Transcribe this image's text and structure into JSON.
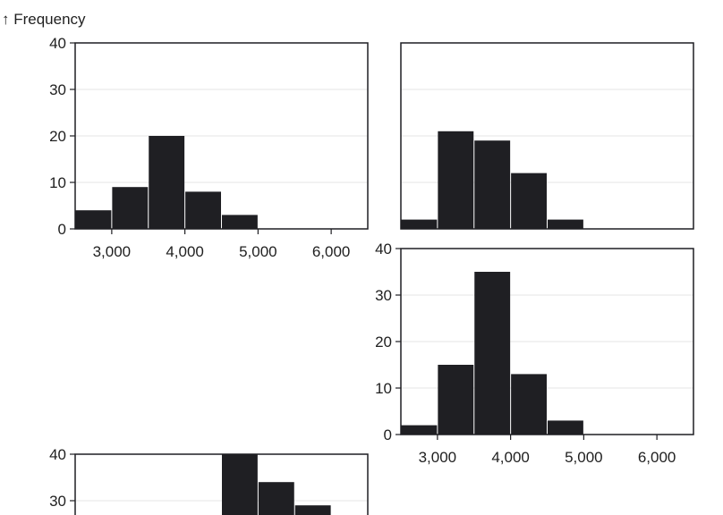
{
  "y_axis_title": "↑ Frequency",
  "colors": {
    "bar": "#1f1f23",
    "frame": "#1f1f23",
    "grid": "#e6e6e6",
    "text": "#1f1f1f"
  },
  "chart_data": [
    {
      "type": "bar",
      "xlim": [
        2500,
        6500
      ],
      "ylim": [
        0,
        40
      ],
      "bin_width": 500,
      "x_ticks": [
        3000,
        4000,
        5000,
        6000
      ],
      "x_tick_labels": [
        "3,000",
        "4,000",
        "5,000",
        "6,000"
      ],
      "y_ticks": [
        0,
        10,
        20,
        30,
        40
      ],
      "y_tick_labels": [
        "0",
        "10",
        "20",
        "30",
        "40"
      ],
      "bins": [
        {
          "x0": 2500,
          "x1": 3000,
          "y": 4
        },
        {
          "x0": 3000,
          "x1": 3500,
          "y": 9
        },
        {
          "x0": 3500,
          "x1": 4000,
          "y": 20
        },
        {
          "x0": 4000,
          "x1": 4500,
          "y": 8
        },
        {
          "x0": 4500,
          "x1": 5000,
          "y": 3
        }
      ],
      "grid": true
    },
    {
      "type": "bar",
      "xlim": [
        2500,
        6500
      ],
      "ylim": [
        0,
        40
      ],
      "bin_width": 500,
      "x_ticks": [],
      "x_tick_labels": [],
      "y_ticks": [],
      "y_tick_labels": [],
      "bins": [
        {
          "x0": 2500,
          "x1": 3000,
          "y": 2
        },
        {
          "x0": 3000,
          "x1": 3500,
          "y": 21
        },
        {
          "x0": 3500,
          "x1": 4000,
          "y": 19
        },
        {
          "x0": 4000,
          "x1": 4500,
          "y": 12
        },
        {
          "x0": 4500,
          "x1": 5000,
          "y": 2
        }
      ],
      "grid": true
    },
    {
      "type": "bar",
      "xlim": [
        2500,
        6500
      ],
      "ylim": [
        0,
        40
      ],
      "bin_width": 500,
      "x_ticks": [
        3000,
        4000,
        5000,
        6000
      ],
      "x_tick_labels": [
        "3,000",
        "4,000",
        "5,000",
        "6,000"
      ],
      "y_ticks": [
        0,
        10,
        20,
        30,
        40
      ],
      "y_tick_labels": [
        "0",
        "10",
        "20",
        "30",
        "40"
      ],
      "bins": [
        {
          "x0": 2500,
          "x1": 3000,
          "y": 2
        },
        {
          "x0": 3000,
          "x1": 3500,
          "y": 15
        },
        {
          "x0": 3500,
          "x1": 4000,
          "y": 35
        },
        {
          "x0": 4000,
          "x1": 4500,
          "y": 13
        },
        {
          "x0": 4500,
          "x1": 5000,
          "y": 3
        }
      ],
      "grid": true
    },
    {
      "type": "bar",
      "xlim": [
        2500,
        6500
      ],
      "ylim": [
        0,
        40
      ],
      "bin_width": 500,
      "x_ticks": [],
      "x_tick_labels": [],
      "y_ticks": [
        30,
        40
      ],
      "y_tick_labels": [
        "30",
        "40"
      ],
      "bins": [
        {
          "x0": 4500,
          "x1": 5000,
          "y": 40
        },
        {
          "x0": 5000,
          "x1": 5500,
          "y": 34
        },
        {
          "x0": 5500,
          "x1": 6000,
          "y": 29
        }
      ],
      "grid": true
    }
  ]
}
